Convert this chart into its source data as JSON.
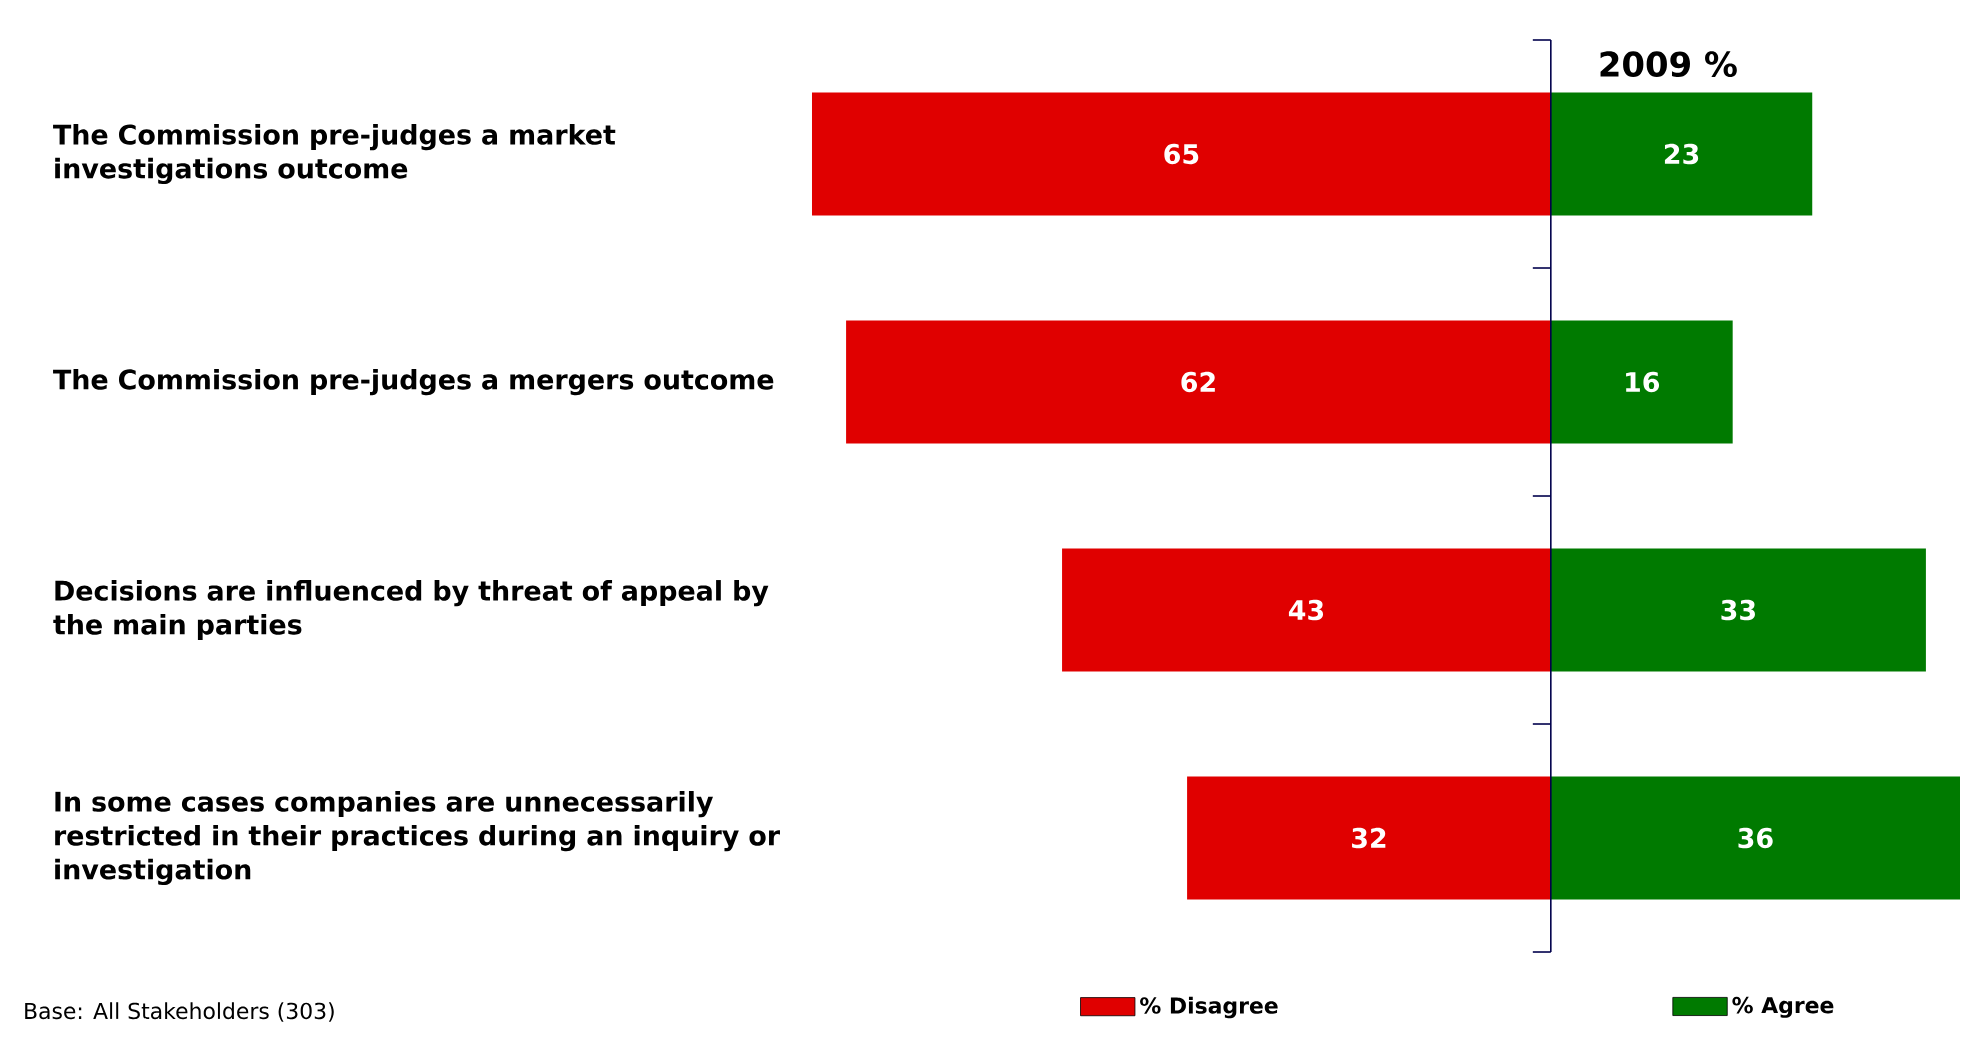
{
  "chart_data": [
    {
      "type": "bar",
      "orientation": "horizontal",
      "categories": [
        "The Commission pre-judges a market investigations outcome",
        "The Commission pre-judges a mergers outcome",
        "Decisions are influenced by threat of appeal by the main parties",
        "In some cases companies are unnecessarily restricted in their practices during an inquiry or investigation"
      ],
      "series": [
        {
          "name": "% Disagree",
          "color": "#e00000",
          "values": [
            65,
            62,
            43,
            32
          ]
        }
      ],
      "xlim": [
        65,
        0
      ],
      "data_labels": true,
      "tick_labels": "y",
      "legend": "bottom",
      "annotations": [
        "Base:  All Stakeholders (303)"
      ]
    },
    {
      "type": "bar",
      "orientation": "horizontal",
      "title": "2009 %",
      "categories": [
        null,
        null,
        null,
        null
      ],
      "series": [
        {
          "name": "% Agree",
          "color": "#007a00",
          "values": [
            23,
            16,
            33,
            36
          ]
        }
      ],
      "xlim": [
        0,
        36
      ],
      "data_labels": true,
      "tick_labels": false,
      "legend": "bottom"
    }
  ]
}
